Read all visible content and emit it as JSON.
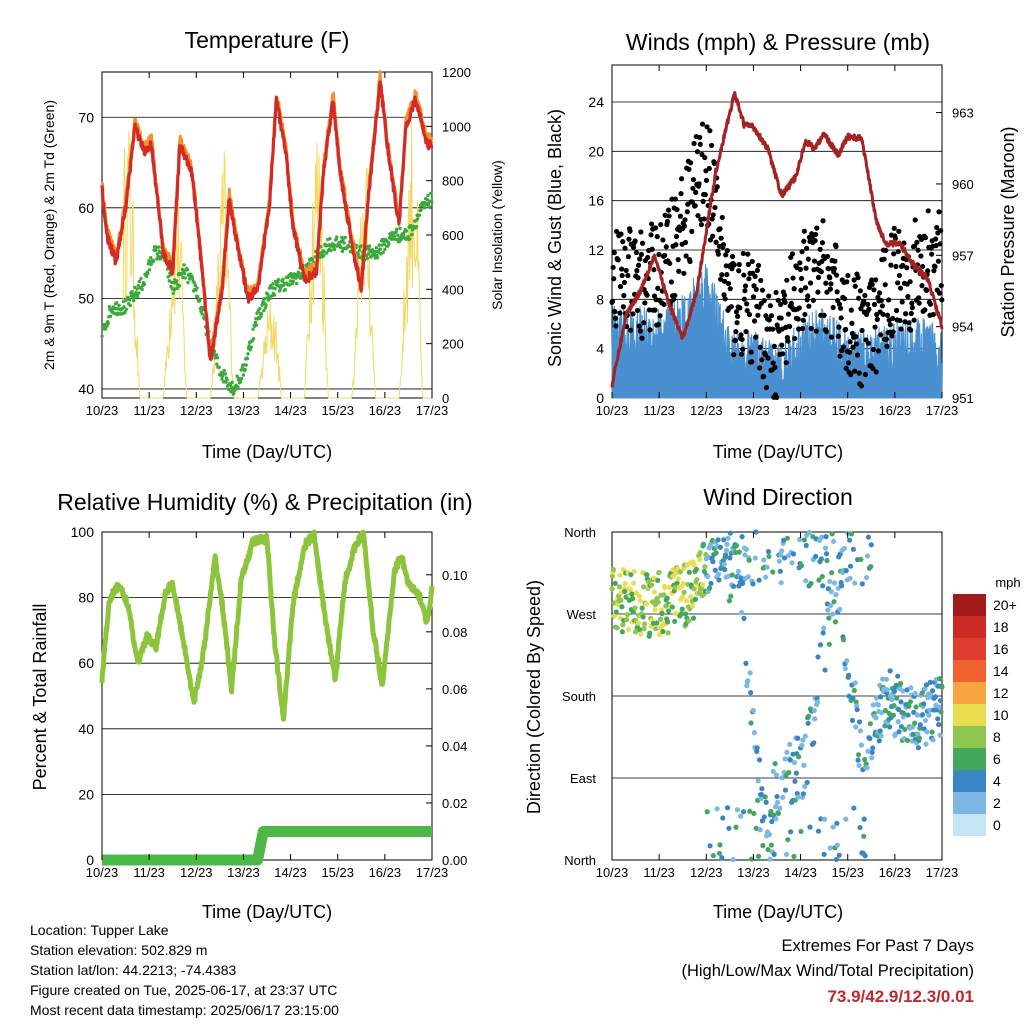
{
  "days": [
    "10/23",
    "11/23",
    "12/23",
    "13/23",
    "14/23",
    "15/23",
    "16/23",
    "17/23"
  ],
  "temp_panel": {
    "title": "Temperature (F)",
    "xlabel": "Time (Day/UTC)",
    "ylabel_left": "2m & 9m T (Red, Orange) & 2m Td (Green)",
    "ylabel_right": "Solar Insolation (Yellow)",
    "left_ticks": [
      "40",
      "50",
      "60",
      "70"
    ],
    "right_ticks": [
      "0",
      "200",
      "400",
      "600",
      "800",
      "1000",
      "1200"
    ]
  },
  "wind_panel": {
    "title": "Winds (mph) & Pressure (mb)",
    "xlabel": "Time (Day/UTC)",
    "ylabel_left": "Sonic Wind & Gust (Blue, Black)",
    "ylabel_right": "Station Pressure (Maroon)",
    "left_ticks": [
      "0",
      "4",
      "8",
      "12",
      "16",
      "20",
      "24"
    ],
    "right_ticks": [
      "951",
      "954",
      "957",
      "960",
      "963"
    ]
  },
  "rh_panel": {
    "title": "Relative Humidity (%) & Precipitation (in)",
    "xlabel": "Time (Day/UTC)",
    "ylabel_left": "Percent & Total Rainfall",
    "left_ticks": [
      "0",
      "20",
      "40",
      "60",
      "80",
      "100"
    ],
    "right_ticks": [
      "0.00",
      "0.02",
      "0.04",
      "0.06",
      "0.08",
      "0.10"
    ]
  },
  "dir_panel": {
    "title": "Wind Direction",
    "xlabel": "Time (Day/UTC)",
    "ylabel_left": "Direction (Colored By Speed)",
    "dir_ticks": [
      "North",
      "East",
      "South",
      "West",
      "North"
    ],
    "legend_title": "mph",
    "legend_labels": [
      "20+",
      "18",
      "16",
      "14",
      "12",
      "10",
      "8",
      "6",
      "4",
      "2",
      "0"
    ],
    "legend_colors": [
      "#a31a1c",
      "#cc2a26",
      "#e03d2e",
      "#f0622f",
      "#f8a441",
      "#e8de50",
      "#8ec64f",
      "#44a85c",
      "#3a86c4",
      "#7cb8e4",
      "#c5e4f6"
    ]
  },
  "info": {
    "location": "Location: Tupper Lake",
    "elevation": "Station elevation: 502.829 m",
    "latlon": "Station lat/lon: 44.2213; -74.4383",
    "created": "Figure created on Tue, 2025-06-17, at 23:37 UTC",
    "recent": "Most recent data timestamp: 2025/06/17 23:15:00"
  },
  "extremes": {
    "line1": "Extremes For Past 7 Days",
    "line2": "(High/Low/Max Wind/Total Precipitation)",
    "values": "73.9/42.9/12.3/0.01"
  },
  "colors": {
    "temp2m": "#d42a26",
    "temp9m": "#f0922d",
    "dewpoint": "#3aaa3a",
    "solar": "#f4d860",
    "wind": "#4a90d0",
    "gust": "#000000",
    "pressure": "#a32323",
    "rh": "#8cc43c",
    "precip": "#4cb848"
  },
  "chart_data": [
    {
      "type": "line",
      "title": "Temperature (F)",
      "xlabel": "Time (Day/UTC)",
      "ylabel": "2m & 9m T (Red, Orange) & 2m Td (Green)",
      "y2label": "Solar Insolation (Yellow)",
      "ylim": [
        39,
        75
      ],
      "y2lim": [
        0,
        1200
      ],
      "series": [
        {
          "name": "2m T",
          "x": [
            0,
            0.1,
            0.3,
            0.5,
            0.7,
            0.9,
            1.05,
            1.3,
            1.5,
            1.65,
            1.9,
            2.05,
            2.3,
            2.55,
            2.7,
            2.9,
            3.1,
            3.3,
            3.55,
            3.7,
            3.9,
            4.05,
            4.3,
            4.55,
            4.7,
            4.9,
            5.05,
            5.3,
            5.5,
            5.65,
            5.9,
            6.05,
            6.3,
            6.45,
            6.65,
            6.9,
            7
          ],
          "y": [
            62,
            57,
            54,
            60,
            69,
            66,
            67,
            55,
            53,
            67,
            64,
            57,
            43,
            51,
            61,
            55,
            50,
            51,
            60,
            72,
            66,
            58,
            52,
            53,
            64,
            72,
            64,
            56,
            51,
            61,
            74,
            67,
            58,
            69,
            72,
            67,
            67
          ]
        },
        {
          "name": "Dewpoint",
          "x": [
            0,
            0.2,
            0.5,
            0.9,
            1.1,
            1.3,
            1.5,
            1.75,
            2.0,
            2.3,
            2.5,
            2.8,
            3.0,
            3.3,
            3.6,
            4.0,
            4.3,
            4.8,
            5.2,
            5.5,
            5.8,
            6.2,
            6.5,
            6.8,
            7
          ],
          "y": [
            46,
            49,
            49,
            52,
            55,
            55,
            51,
            53,
            51,
            45,
            42,
            40,
            42,
            48,
            51,
            52,
            53,
            56,
            56,
            55,
            55,
            57,
            57,
            60,
            61
          ]
        },
        {
          "name": "Solar Insolation",
          "x": [
            0.6,
            1.15,
            1.65,
            2.2,
            2.6,
            3.2,
            3.6,
            4.2,
            4.65,
            5.2,
            5.6,
            6.2,
            6.6
          ],
          "y": [
            1050,
            120,
            950,
            90,
            1000,
            150,
            400,
            900,
            1100,
            200,
            1000,
            150,
            1150
          ]
        }
      ]
    },
    {
      "type": "line",
      "title": "Winds (mph) & Pressure (mb)",
      "xlabel": "Time (Day/UTC)",
      "ylabel": "Sonic Wind & Gust (Blue, Black)",
      "y2label": "Station Pressure (Maroon)",
      "ylim": [
        0,
        27
      ],
      "y2lim": [
        951,
        965
      ],
      "series": [
        {
          "name": "Station Pressure",
          "x": [
            0,
            0.3,
            0.6,
            0.9,
            1.2,
            1.5,
            1.8,
            2.2,
            2.5,
            2.6,
            2.8,
            3.0,
            3.3,
            3.6,
            3.9,
            4.1,
            4.3,
            4.5,
            4.8,
            5.0,
            5.3,
            5.6,
            5.8,
            6.1,
            6.4,
            6.7,
            7
          ],
          "y": [
            951.5,
            954.5,
            955.5,
            957,
            955,
            953.5,
            955.5,
            960.5,
            963,
            963.8,
            962.5,
            962.4,
            961.5,
            959.5,
            960.3,
            961.8,
            961.5,
            962.1,
            961.2,
            962.0,
            961.9,
            958.5,
            957.5,
            957.5,
            956.6,
            956,
            954
          ]
        },
        {
          "name": "Sonic Wind",
          "x": [
            0,
            0.5,
            1,
            1.5,
            2,
            2.5,
            3,
            3.5,
            4,
            4.5,
            5,
            5.5,
            6,
            6.5,
            7
          ],
          "y": [
            5,
            5,
            5,
            6,
            9,
            3,
            3,
            2,
            4,
            5,
            3,
            3,
            4,
            4,
            4
          ]
        },
        {
          "name": "Gust",
          "x": [
            0,
            0.5,
            1,
            1.5,
            2,
            2.5,
            3,
            3.5,
            4,
            4.5,
            5,
            5.5,
            6,
            6.5,
            7
          ],
          "y": [
            10,
            9,
            10,
            14,
            19,
            8,
            7,
            4,
            9,
            10,
            6,
            5,
            10,
            10,
            12
          ]
        }
      ]
    },
    {
      "type": "line",
      "title": "Relative Humidity (%) & Precipitation (in)",
      "xlabel": "Time (Day/UTC)",
      "ylabel": "Percent & Total Rainfall",
      "ylim": [
        0,
        100
      ],
      "y2lim": [
        0,
        0.115
      ],
      "series": [
        {
          "name": "Relative Humidity",
          "x": [
            0,
            0.15,
            0.35,
            0.55,
            0.75,
            0.95,
            1.15,
            1.35,
            1.5,
            1.75,
            1.95,
            2.15,
            2.4,
            2.55,
            2.75,
            2.95,
            3.2,
            3.5,
            3.65,
            3.85,
            4.05,
            4.3,
            4.5,
            4.75,
            4.95,
            5.15,
            5.4,
            5.55,
            5.75,
            5.95,
            6.2,
            6.35,
            6.5,
            6.75,
            6.9,
            7
          ],
          "y": [
            55,
            79,
            84,
            78,
            60,
            68,
            65,
            82,
            84,
            65,
            48,
            63,
            92,
            78,
            52,
            85,
            97,
            98,
            68,
            43,
            78,
            96,
            99,
            72,
            55,
            85,
            97,
            99,
            70,
            53,
            88,
            93,
            84,
            80,
            72,
            83
          ]
        },
        {
          "name": "Total Rainfall",
          "x": [
            0,
            3.3,
            3.42,
            3.5,
            7
          ],
          "y": [
            0,
            0,
            0.01,
            0.01,
            0.01
          ]
        }
      ]
    },
    {
      "type": "scatter",
      "title": "Wind Direction",
      "xlabel": "Time (Day/UTC)",
      "ylabel": "Direction (Colored By Speed)",
      "ylim": [
        0,
        360
      ],
      "y_categories": [
        "North",
        "East",
        "South",
        "West",
        "North"
      ],
      "legend_title": "mph",
      "series": [
        {
          "name": "Direction",
          "x": [
            0.3,
            0.8,
            1.3,
            1.7,
            2.2,
            2.7,
            3.2,
            3.6,
            4.1,
            4.7,
            5.3,
            5.8,
            6.2,
            6.6,
            7
          ],
          "y": [
            285,
            280,
            285,
            295,
            345,
            300,
            40,
            90,
            105,
            300,
            120,
            180,
            160,
            155,
            170
          ]
        }
      ]
    }
  ]
}
